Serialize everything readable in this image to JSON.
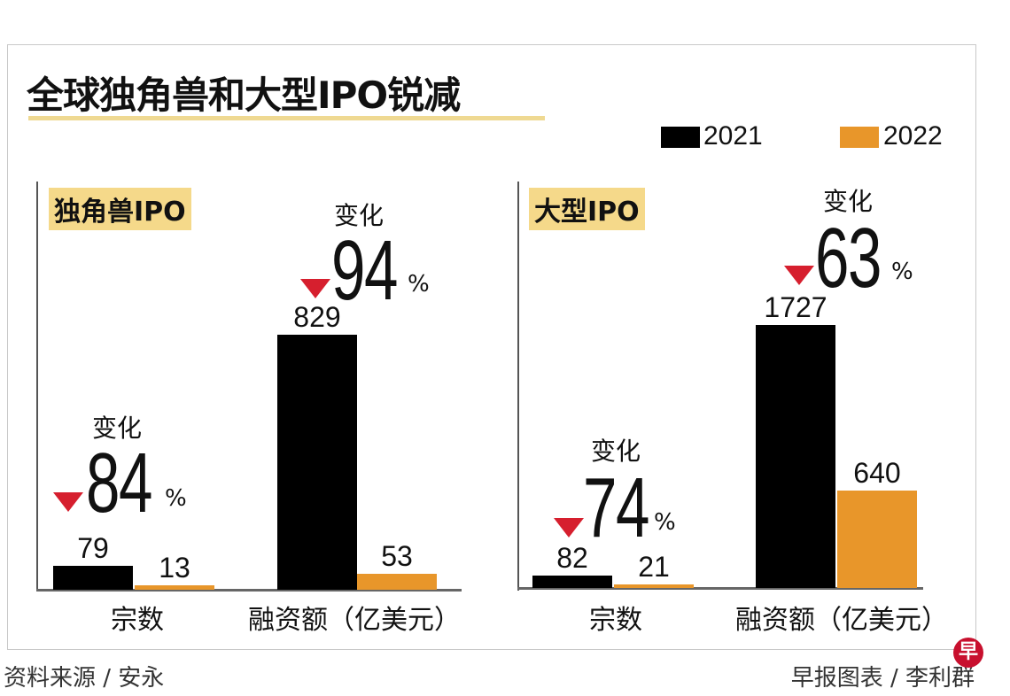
{
  "chart_data": [
    {
      "type": "bar",
      "title": "全球独角兽和大型IPO锐减",
      "panel": "独角兽IPO",
      "categories": [
        "宗数",
        "融资额（亿美元）"
      ],
      "series": [
        {
          "name": "2021",
          "values": [
            79,
            829
          ],
          "color": "#000000"
        },
        {
          "name": "2022",
          "values": [
            13,
            53
          ],
          "color": "#e8962a"
        }
      ],
      "changes": [
        {
          "label": "变化",
          "direction": "down",
          "value": "84",
          "unit": "%"
        },
        {
          "label": "变化",
          "direction": "down",
          "value": "94",
          "unit": "%"
        }
      ]
    },
    {
      "type": "bar",
      "title": "全球独角兽和大型IPO锐减",
      "panel": "大型IPO",
      "categories": [
        "宗数",
        "融资额（亿美元）"
      ],
      "series": [
        {
          "name": "2021",
          "values": [
            82,
            1727
          ],
          "color": "#000000"
        },
        {
          "name": "2022",
          "values": [
            21,
            640
          ],
          "color": "#e8962a"
        }
      ],
      "changes": [
        {
          "label": "变化",
          "direction": "down",
          "value": "74",
          "unit": "%"
        },
        {
          "label": "变化",
          "direction": "down",
          "value": "63",
          "unit": "%"
        }
      ]
    }
  ],
  "title": "全球独角兽和大型IPO锐减",
  "legend": [
    {
      "label": "2021",
      "color": "#000000"
    },
    {
      "label": "2022",
      "color": "#e8962a"
    }
  ],
  "footer": {
    "source": "资料来源 / 安永",
    "credit": "早报图表 / 李利群",
    "logo": "早"
  }
}
